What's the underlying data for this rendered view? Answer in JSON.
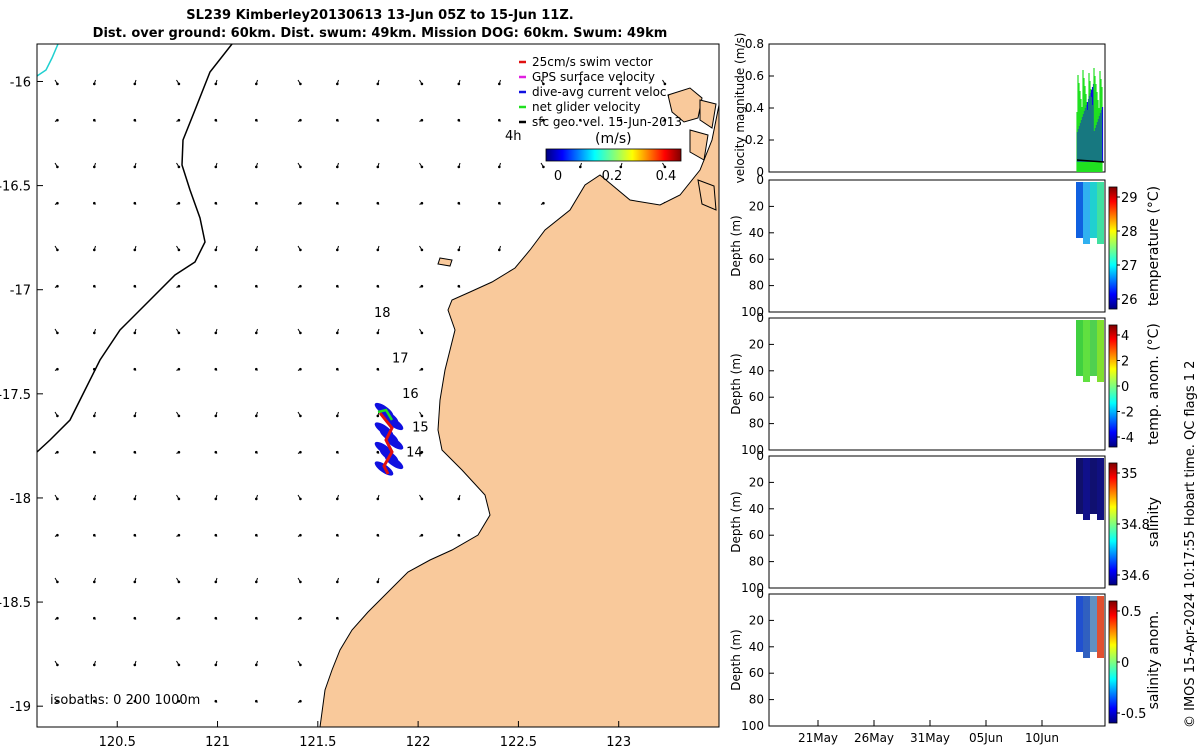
{
  "header": {
    "title_line1": "SL239 Kimberley20130613 13-Jun 05Z to 15-Jun 11Z.",
    "title_line2": "Dist. over ground: 60km. Dist. swum: 49km. Mission DOG: 60km. Swum: 49km"
  },
  "footer": {
    "note": "© IMOS 15-Apr-2024 10:17:55 Hobart time. QC flags 1 2"
  },
  "chart_data": [
    {
      "type": "scatter",
      "id": "map",
      "x_ticks": [
        "120.5",
        "121",
        "121.5",
        "122",
        "122.5",
        "123"
      ],
      "y_ticks": [
        "-16",
        "-16.5",
        "-17",
        "-17.5",
        "-18",
        "-18.5",
        "-19"
      ],
      "xlim": [
        120.1,
        123.5
      ],
      "ylim": [
        -19.1,
        -15.82
      ],
      "legend": {
        "placement": "top-right",
        "entries": [
          {
            "label": "25cm/s swim vector",
            "color": "#e01010"
          },
          {
            "label": "GPS surface velocity",
            "color": "#e020e0"
          },
          {
            "label": "dive-avg current veloc.",
            "color": "#1010e0"
          },
          {
            "label": "net glider velocity",
            "color": "#20e020"
          },
          {
            "label": "sfc geo. vel. 15-Jun-2013",
            "color": "#000000"
          }
        ]
      },
      "vector_label": "4h",
      "colorbar": {
        "label": "(m/s)",
        "ticks": [
          "0",
          "0.2",
          "0.4"
        ],
        "range": [
          0,
          0.5
        ]
      },
      "day_labels": [
        {
          "text": "18",
          "lon": 121.78,
          "lat": -17.13
        },
        {
          "text": "17",
          "lon": 121.87,
          "lat": -17.35
        },
        {
          "text": "16",
          "lon": 121.92,
          "lat": -17.52
        },
        {
          "text": "15",
          "lon": 121.97,
          "lat": -17.68
        },
        {
          "text": "14",
          "lon": 121.94,
          "lat": -17.8
        }
      ],
      "isobaths_label": "isobaths: 0   200  1000m",
      "colors": {
        "land": "#f9c99b",
        "coast": "#000000",
        "isobath": "#000000",
        "isobath_shallow": "#20d0d0"
      }
    },
    {
      "type": "bar",
      "id": "velocity",
      "ylabel": "velocity magnitude (m/s)",
      "y_ticks": [
        "0",
        "0.2",
        "0.4",
        "0.6",
        "0.8"
      ],
      "ylim": [
        0,
        0.8
      ]
    },
    {
      "type": "heatmap",
      "id": "temperature",
      "ylabel": "Depth (m)",
      "y_ticks": [
        "0",
        "20",
        "40",
        "60",
        "80",
        "100"
      ],
      "colorbar_label": "temperature (°C)",
      "colorbar_ticks": [
        "29",
        "28",
        "27",
        "26"
      ]
    },
    {
      "type": "heatmap",
      "id": "temp_anom",
      "ylabel": "Depth (m)",
      "y_ticks": [
        "0",
        "20",
        "40",
        "60",
        "80",
        "100"
      ],
      "colorbar_label": "temp. anom. (°C)",
      "colorbar_ticks": [
        "4",
        "2",
        "0",
        "-2",
        "-4"
      ]
    },
    {
      "type": "heatmap",
      "id": "salinity",
      "ylabel": "Depth (m)",
      "y_ticks": [
        "0",
        "20",
        "40",
        "60",
        "80",
        "100"
      ],
      "colorbar_label": "salinity",
      "colorbar_ticks": [
        "35",
        "34.8",
        "34.6"
      ]
    },
    {
      "type": "heatmap",
      "id": "salinity_anom",
      "ylabel": "Depth (m)",
      "y_ticks": [
        "0",
        "20",
        "40",
        "60",
        "80",
        "100"
      ],
      "colorbar_label": "salinity anom.",
      "colorbar_ticks": [
        "0.5",
        "0",
        "-0.5"
      ],
      "x_ticks": [
        "21May",
        "26May",
        "31May",
        "05Jun",
        "10Jun"
      ]
    }
  ]
}
